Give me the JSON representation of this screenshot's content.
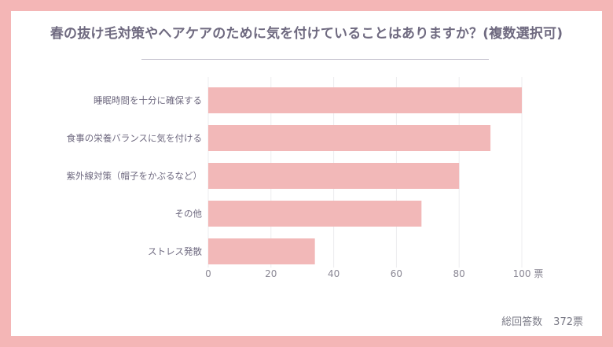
{
  "title": "春の抜け毛対策やヘアケアのために気を付けていることはありますか？(複数選択可)",
  "chart_data": {
    "type": "bar",
    "orientation": "horizontal",
    "categories": [
      "睡眠時間を十分に確保する",
      "食事の栄養バランスに気を付ける",
      "紫外線対策（帽子をかぶるなど）",
      "その他",
      "ストレス発散"
    ],
    "values": [
      100,
      90,
      80,
      68,
      34
    ],
    "xlim": [
      0,
      100
    ],
    "xticks": [
      0,
      20,
      40,
      60,
      80,
      100
    ],
    "xunit": "票",
    "grid": true,
    "bar_color": "#f2b8b8"
  },
  "footer": {
    "label": "総回答数",
    "total": "372票"
  }
}
